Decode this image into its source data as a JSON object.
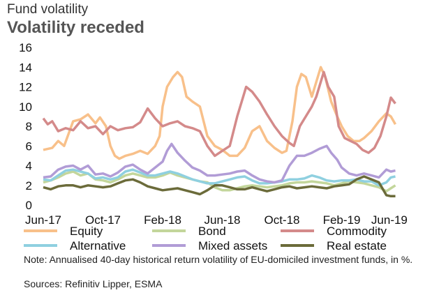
{
  "header": {
    "supertitle": "Fund volatility",
    "title": "Volatility receded"
  },
  "footer": {
    "note": "Note: Annualised 40-day historical return volatility of EU-domiciled investment funds, in %.",
    "source": "Sources: Refinitiv Lipper, ESMA"
  },
  "chart_data": {
    "type": "line",
    "title": "Volatility receded",
    "ylim": [
      0,
      16
    ],
    "yticks": [
      0,
      2,
      4,
      6,
      8,
      10,
      12,
      14,
      16
    ],
    "xlabels": [
      "Jun-17",
      "Oct-17",
      "Feb-18",
      "Jun-18",
      "Oct-18",
      "Feb-19",
      "Jun-19"
    ],
    "x_range": [
      0,
      24
    ],
    "grid": false,
    "legend_position": "bottom",
    "series": [
      {
        "name": "Equity",
        "color": "#f8c08a",
        "points": [
          [
            0,
            5.6
          ],
          [
            0.6,
            5.8
          ],
          [
            1,
            6.5
          ],
          [
            1.4,
            6.0
          ],
          [
            2,
            8.5
          ],
          [
            2.5,
            8.7
          ],
          [
            3,
            9.2
          ],
          [
            3.5,
            8.3
          ],
          [
            3.8,
            8.9
          ],
          [
            4.2,
            8.0
          ],
          [
            4.5,
            6.0
          ],
          [
            4.8,
            5.0
          ],
          [
            5.1,
            4.7
          ],
          [
            5.5,
            5.0
          ],
          [
            6,
            5.2
          ],
          [
            6.5,
            5.5
          ],
          [
            7,
            5.2
          ],
          [
            7.5,
            6.0
          ],
          [
            7.8,
            7.0
          ],
          [
            8.0,
            10.0
          ],
          [
            8.3,
            12.0
          ],
          [
            8.7,
            13.0
          ],
          [
            9,
            13.5
          ],
          [
            9.3,
            13.0
          ],
          [
            9.6,
            11.0
          ],
          [
            10,
            10.5
          ],
          [
            10.5,
            10.0
          ],
          [
            11,
            7.0
          ],
          [
            11.5,
            6.0
          ],
          [
            12,
            5.6
          ],
          [
            12.5,
            5.0
          ],
          [
            13,
            5.0
          ],
          [
            13.5,
            5.8
          ],
          [
            14,
            7.5
          ],
          [
            14.5,
            8.0
          ],
          [
            15,
            6.5
          ],
          [
            15.5,
            5.8
          ],
          [
            16,
            5.3
          ],
          [
            16.3,
            5.5
          ],
          [
            16.7,
            8.5
          ],
          [
            17,
            12.0
          ],
          [
            17.3,
            13.3
          ],
          [
            17.6,
            13.0
          ],
          [
            18,
            11.0
          ],
          [
            18.3,
            12.5
          ],
          [
            18.6,
            14.0
          ],
          [
            18.9,
            13.0
          ],
          [
            19.3,
            10.5
          ],
          [
            19.7,
            9.0
          ],
          [
            20,
            8.0
          ],
          [
            20.4,
            7.0
          ],
          [
            20.8,
            6.5
          ],
          [
            21.2,
            6.5
          ],
          [
            21.5,
            6.8
          ],
          [
            22,
            7.5
          ],
          [
            22.5,
            8.5
          ],
          [
            23,
            9.3
          ],
          [
            23.3,
            9.0
          ],
          [
            23.6,
            8.2
          ]
        ]
      },
      {
        "name": "Bond",
        "color": "#c3d69b",
        "points": [
          [
            0,
            2.3
          ],
          [
            0.5,
            2.5
          ],
          [
            1,
            2.8
          ],
          [
            1.5,
            3.2
          ],
          [
            2,
            3.4
          ],
          [
            2.5,
            3.0
          ],
          [
            3,
            3.2
          ],
          [
            3.5,
            2.6
          ],
          [
            4,
            2.5
          ],
          [
            4.5,
            2.3
          ],
          [
            5,
            2.6
          ],
          [
            5.5,
            3.0
          ],
          [
            6,
            3.2
          ],
          [
            6.5,
            3.0
          ],
          [
            7,
            2.8
          ],
          [
            7.5,
            2.8
          ],
          [
            8,
            3.0
          ],
          [
            8.5,
            3.3
          ],
          [
            9,
            3.0
          ],
          [
            9.5,
            2.8
          ],
          [
            10,
            2.6
          ],
          [
            10.5,
            2.4
          ],
          [
            11,
            2.3
          ],
          [
            11.5,
            1.8
          ],
          [
            12,
            1.5
          ],
          [
            12.5,
            1.5
          ],
          [
            13,
            1.7
          ],
          [
            13.5,
            1.9
          ],
          [
            14,
            2.0
          ],
          [
            14.5,
            1.9
          ],
          [
            15,
            1.8
          ],
          [
            15.5,
            1.9
          ],
          [
            16,
            2.0
          ],
          [
            16.5,
            2.2
          ],
          [
            17,
            2.3
          ],
          [
            17.5,
            2.3
          ],
          [
            18,
            2.4
          ],
          [
            18.5,
            2.3
          ],
          [
            19,
            2.2
          ],
          [
            19.5,
            2.0
          ],
          [
            20,
            2.2
          ],
          [
            20.5,
            2.4
          ],
          [
            21,
            2.3
          ],
          [
            21.5,
            2.2
          ],
          [
            22,
            2.0
          ],
          [
            22.5,
            1.8
          ],
          [
            23,
            1.4
          ],
          [
            23.3,
            1.7
          ],
          [
            23.6,
            2.0
          ]
        ]
      },
      {
        "name": "Commodity",
        "color": "#d48a8a",
        "points": [
          [
            0,
            8.8
          ],
          [
            0.3,
            8.2
          ],
          [
            0.6,
            8.5
          ],
          [
            1,
            7.5
          ],
          [
            1.5,
            7.8
          ],
          [
            2,
            7.6
          ],
          [
            2.5,
            8.5
          ],
          [
            3,
            7.8
          ],
          [
            3.5,
            8.0
          ],
          [
            4,
            7.2
          ],
          [
            4.5,
            8.0
          ],
          [
            5,
            7.6
          ],
          [
            5.5,
            7.8
          ],
          [
            6,
            7.9
          ],
          [
            6.5,
            8.4
          ],
          [
            7,
            9.8
          ],
          [
            7.5,
            8.8
          ],
          [
            8,
            8.0
          ],
          [
            8.5,
            8.3
          ],
          [
            9,
            8.5
          ],
          [
            9.5,
            8.0
          ],
          [
            10,
            7.8
          ],
          [
            10.5,
            7.5
          ],
          [
            11,
            6.0
          ],
          [
            11.5,
            5.0
          ],
          [
            12,
            5.5
          ],
          [
            12.5,
            6.0
          ],
          [
            13,
            9.0
          ],
          [
            13.3,
            10.5
          ],
          [
            13.6,
            12.0
          ],
          [
            14,
            11.5
          ],
          [
            14.5,
            10.5
          ],
          [
            15,
            9.2
          ],
          [
            15.5,
            8.0
          ],
          [
            16,
            7.0
          ],
          [
            16.5,
            6.3
          ],
          [
            16.8,
            6.0
          ],
          [
            17.2,
            8.0
          ],
          [
            17.6,
            9.0
          ],
          [
            18,
            10.0
          ],
          [
            18.3,
            11.0
          ],
          [
            18.6,
            12.5
          ],
          [
            18.8,
            13.5
          ],
          [
            19.1,
            12.0
          ],
          [
            19.5,
            11.0
          ],
          [
            19.8,
            8.0
          ],
          [
            20.2,
            6.8
          ],
          [
            20.6,
            6.5
          ],
          [
            21,
            6.2
          ],
          [
            21.4,
            5.6
          ],
          [
            21.8,
            5.3
          ],
          [
            22.2,
            5.8
          ],
          [
            22.6,
            7.0
          ],
          [
            23,
            9.0
          ],
          [
            23.3,
            10.9
          ],
          [
            23.6,
            10.3
          ]
        ]
      },
      {
        "name": "Alternative",
        "color": "#8fd0e0",
        "points": [
          [
            0,
            2.6
          ],
          [
            0.5,
            2.5
          ],
          [
            1,
            3.0
          ],
          [
            1.5,
            3.5
          ],
          [
            2,
            3.6
          ],
          [
            2.5,
            3.4
          ],
          [
            3,
            3.2
          ],
          [
            3.5,
            2.7
          ],
          [
            4,
            2.8
          ],
          [
            4.5,
            2.6
          ],
          [
            5,
            2.8
          ],
          [
            5.5,
            3.4
          ],
          [
            6,
            3.6
          ],
          [
            6.5,
            3.3
          ],
          [
            7,
            3.0
          ],
          [
            7.5,
            3.0
          ],
          [
            8,
            3.2
          ],
          [
            8.5,
            3.4
          ],
          [
            9,
            3.2
          ],
          [
            9.5,
            2.9
          ],
          [
            10,
            2.6
          ],
          [
            10.5,
            2.4
          ],
          [
            11,
            2.2
          ],
          [
            11.5,
            2.2
          ],
          [
            12,
            2.4
          ],
          [
            12.5,
            2.6
          ],
          [
            13,
            2.8
          ],
          [
            13.5,
            2.9
          ],
          [
            14,
            2.5
          ],
          [
            14.5,
            2.2
          ],
          [
            15,
            2.2
          ],
          [
            15.5,
            2.3
          ],
          [
            16,
            2.4
          ],
          [
            16.5,
            2.6
          ],
          [
            17,
            2.6
          ],
          [
            17.5,
            2.7
          ],
          [
            18,
            3.0
          ],
          [
            18.5,
            2.8
          ],
          [
            19,
            2.5
          ],
          [
            19.5,
            2.4
          ],
          [
            20,
            2.5
          ],
          [
            20.5,
            2.5
          ],
          [
            21,
            2.6
          ],
          [
            21.5,
            2.4
          ],
          [
            22,
            2.4
          ],
          [
            22.5,
            2.0
          ],
          [
            23,
            2.3
          ],
          [
            23.3,
            2.8
          ],
          [
            23.6,
            2.9
          ]
        ]
      },
      {
        "name": "Mixed assets",
        "color": "#b19cd6",
        "points": [
          [
            0,
            2.8
          ],
          [
            0.5,
            2.9
          ],
          [
            1,
            3.6
          ],
          [
            1.5,
            3.9
          ],
          [
            2,
            4.0
          ],
          [
            2.5,
            3.6
          ],
          [
            3,
            4.0
          ],
          [
            3.5,
            3.1
          ],
          [
            4,
            3.2
          ],
          [
            4.5,
            2.9
          ],
          [
            5,
            3.3
          ],
          [
            5.5,
            3.9
          ],
          [
            6,
            4.1
          ],
          [
            6.5,
            3.6
          ],
          [
            7,
            3.2
          ],
          [
            7.5,
            3.8
          ],
          [
            8,
            4.4
          ],
          [
            8.3,
            5.5
          ],
          [
            8.6,
            6.2
          ],
          [
            9,
            5.3
          ],
          [
            9.5,
            4.5
          ],
          [
            10,
            3.8
          ],
          [
            10.5,
            3.5
          ],
          [
            11,
            3.0
          ],
          [
            11.5,
            3.0
          ],
          [
            12,
            3.1
          ],
          [
            12.5,
            3.2
          ],
          [
            13,
            3.4
          ],
          [
            13.5,
            3.5
          ],
          [
            14,
            3.0
          ],
          [
            14.5,
            2.6
          ],
          [
            15,
            2.4
          ],
          [
            15.5,
            2.3
          ],
          [
            16,
            2.5
          ],
          [
            16.5,
            4.0
          ],
          [
            17,
            5.0
          ],
          [
            17.5,
            5.0
          ],
          [
            18,
            5.3
          ],
          [
            18.5,
            5.7
          ],
          [
            19,
            6.0
          ],
          [
            19.3,
            5.3
          ],
          [
            19.7,
            4.6
          ],
          [
            20,
            3.8
          ],
          [
            20.5,
            3.2
          ],
          [
            21,
            3.0
          ],
          [
            21.5,
            3.2
          ],
          [
            22,
            3.0
          ],
          [
            22.5,
            2.8
          ],
          [
            23,
            3.6
          ],
          [
            23.3,
            3.4
          ],
          [
            23.6,
            3.5
          ]
        ]
      },
      {
        "name": "Real estate",
        "color": "#6b6b3a",
        "points": [
          [
            0,
            1.8
          ],
          [
            0.5,
            1.6
          ],
          [
            1,
            1.9
          ],
          [
            1.5,
            2.0
          ],
          [
            2,
            2.0
          ],
          [
            2.5,
            1.8
          ],
          [
            3,
            2.0
          ],
          [
            3.5,
            1.9
          ],
          [
            4,
            1.8
          ],
          [
            4.5,
            1.9
          ],
          [
            5,
            2.2
          ],
          [
            5.5,
            2.5
          ],
          [
            6,
            2.6
          ],
          [
            6.5,
            2.3
          ],
          [
            7,
            1.9
          ],
          [
            7.5,
            1.7
          ],
          [
            8,
            1.5
          ],
          [
            8.5,
            1.6
          ],
          [
            9,
            1.7
          ],
          [
            9.5,
            1.5
          ],
          [
            10,
            1.3
          ],
          [
            10.5,
            1.1
          ],
          [
            11,
            1.5
          ],
          [
            11.5,
            2.0
          ],
          [
            12,
            2.0
          ],
          [
            12.5,
            1.8
          ],
          [
            13,
            1.6
          ],
          [
            13.5,
            1.6
          ],
          [
            14,
            1.8
          ],
          [
            14.5,
            1.6
          ],
          [
            15,
            1.4
          ],
          [
            15.5,
            1.6
          ],
          [
            16,
            1.8
          ],
          [
            16.5,
            1.9
          ],
          [
            17,
            1.7
          ],
          [
            17.5,
            1.8
          ],
          [
            18,
            1.9
          ],
          [
            18.5,
            1.8
          ],
          [
            19,
            1.7
          ],
          [
            19.5,
            1.9
          ],
          [
            20,
            2.0
          ],
          [
            20.5,
            2.1
          ],
          [
            21,
            2.6
          ],
          [
            21.5,
            2.9
          ],
          [
            22,
            2.6
          ],
          [
            22.5,
            2.3
          ],
          [
            23,
            1.0
          ],
          [
            23.3,
            0.9
          ],
          [
            23.6,
            0.9
          ]
        ]
      }
    ]
  }
}
